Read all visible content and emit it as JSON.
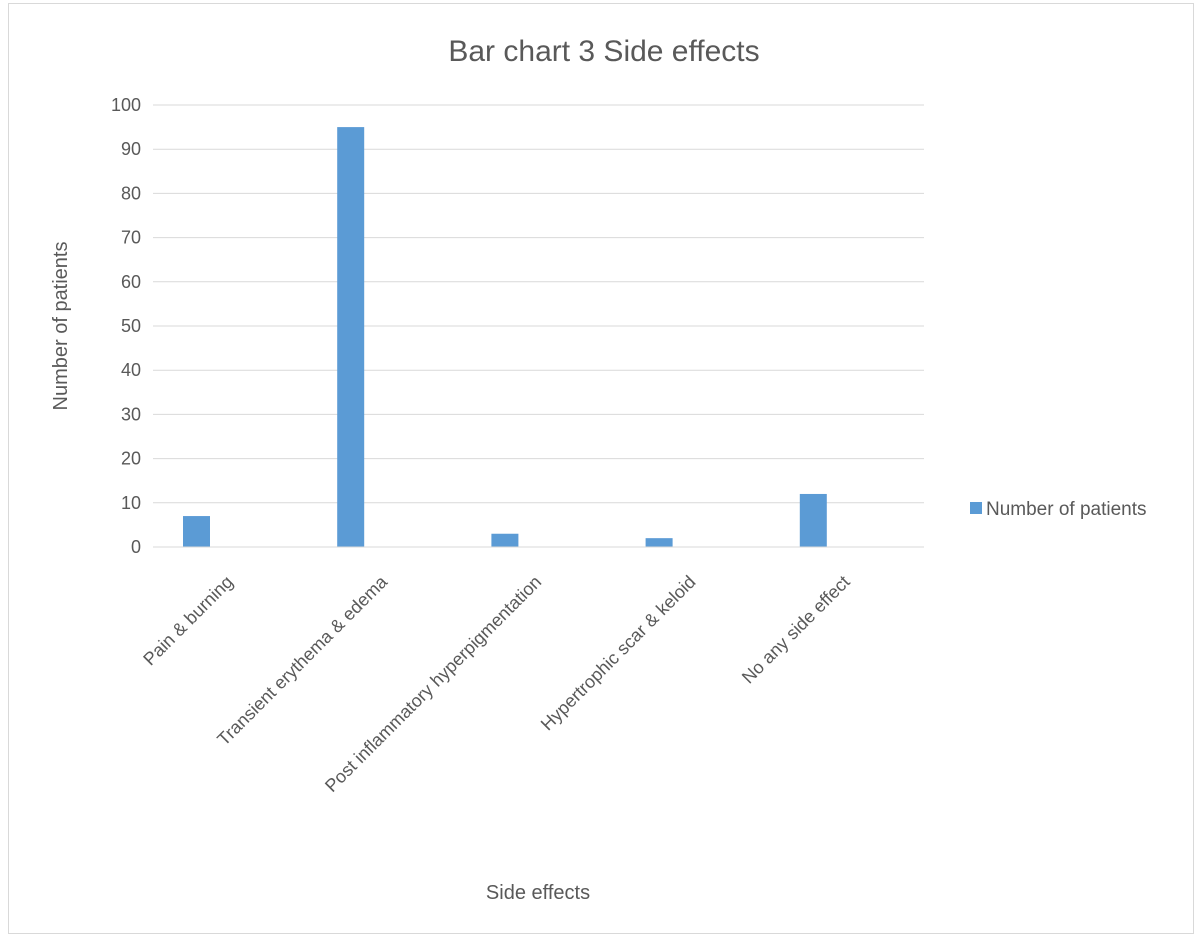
{
  "chart_data": {
    "type": "bar",
    "title": "Bar chart 3 Side effects",
    "xlabel": "Side effects",
    "ylabel": "Number of patients",
    "categories": [
      "Pain & burning",
      "Transient erythema & edema",
      "Post inflammatory hyperpigmentation",
      "Hypertrophic scar & keloid",
      "No any side effect"
    ],
    "series": [
      {
        "name": "Number of patients",
        "values": [
          7,
          95,
          3,
          2,
          12
        ],
        "color": "#5b9bd5"
      }
    ],
    "ylim": [
      0,
      100
    ],
    "yticks": [
      "0",
      "10",
      "20",
      "30",
      "40",
      "50",
      "60",
      "70",
      "80",
      "90",
      "100"
    ],
    "grid": true,
    "legend": "right"
  }
}
